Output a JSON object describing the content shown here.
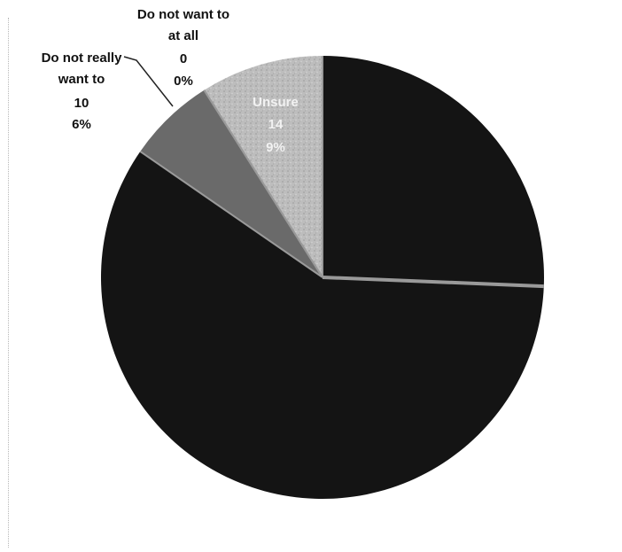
{
  "colors": {
    "background": "#ffffff",
    "dark_slice": "#141414",
    "unsure_slice": "#bdbdbd",
    "do_not_really_slice": "#6a6a6a",
    "separator": "#9a9a9a",
    "light_label": "#f2f2f2",
    "dark_label": "#111111"
  },
  "chart_data": {
    "type": "pie",
    "start_angle_deg": 0,
    "direction": "clockwise",
    "slices": [
      {
        "label": "",
        "value": 40,
        "percent": "",
        "color": "#141414"
      },
      {
        "label": "",
        "value": 92,
        "percent": "",
        "color": "#141414"
      },
      {
        "label": "Do not really want to",
        "value": 10,
        "percent": "6%",
        "color": "#6a6a6a"
      },
      {
        "label": "Do not want to at all",
        "value": 0,
        "percent": "0%",
        "color": "#9a9a9a"
      },
      {
        "label": "Unsure",
        "value": 14,
        "percent": "9%",
        "color": "#bdbdbd"
      }
    ],
    "labels": {
      "do_not_want_at_all": {
        "line1": "Do not want to",
        "line2": "at all",
        "value": "0",
        "percent": "0%"
      },
      "do_not_really_want": {
        "line1": "Do not really",
        "line2": "want to",
        "value": "10",
        "percent": "6%"
      },
      "unsure": {
        "line1": "Unsure",
        "value": "14",
        "percent": "9%"
      }
    }
  }
}
